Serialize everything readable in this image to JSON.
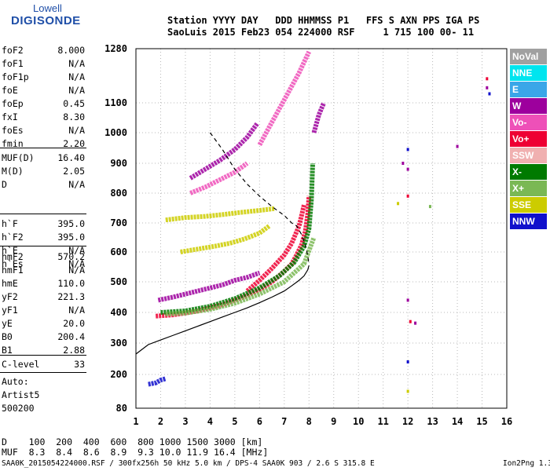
{
  "logo": {
    "line1": "Lowell",
    "line2": "DIGISONDE"
  },
  "header": {
    "line1": "Station YYYY DAY   DDD HHMMSS P1   FFS S AXN PPS IGA PS",
    "line2": "SaoLuis 2015 Feb23 054 224000 RSF     1 715 100 00- 11"
  },
  "params_a": [
    {
      "k": "foF2",
      "v": "8.000"
    },
    {
      "k": "foF1",
      "v": "N/A"
    },
    {
      "k": "foF1p",
      "v": "N/A"
    },
    {
      "k": "foE",
      "v": "N/A"
    },
    {
      "k": "foEp",
      "v": "0.45"
    },
    {
      "k": "fxI",
      "v": "8.30"
    },
    {
      "k": "foEs",
      "v": "N/A"
    },
    {
      "k": "fmin",
      "v": "2.20"
    }
  ],
  "params_b": [
    {
      "k": "MUF(D)",
      "v": "16.40"
    },
    {
      "k": "M(D)",
      "v": "2.05"
    },
    {
      "k": "D",
      "v": "N/A"
    }
  ],
  "params_c": [
    {
      "k": "h`F",
      "v": "395.0"
    },
    {
      "k": "h`F2",
      "v": "395.0"
    },
    {
      "k": "h`E",
      "v": "N/A"
    },
    {
      "k": "h`Es",
      "v": "N/A"
    }
  ],
  "params_d": [
    {
      "k": "hmF2",
      "v": "570.2"
    },
    {
      "k": "hmF1",
      "v": "N/A"
    },
    {
      "k": "hmE",
      "v": "110.0"
    },
    {
      "k": "yF2",
      "v": "221.3"
    },
    {
      "k": "yF1",
      "v": "N/A"
    },
    {
      "k": "yE",
      "v": "20.0"
    },
    {
      "k": "B0",
      "v": "200.4"
    },
    {
      "k": "B1",
      "v": "2.88"
    }
  ],
  "params_e": [
    {
      "k": "C-level",
      "v": "33"
    }
  ],
  "auto": {
    "line1": "Auto:",
    "line2": "Artist5",
    "line3": "500200"
  },
  "legend": [
    {
      "label": "NoVal",
      "color": "#a0a0a0"
    },
    {
      "label": "NNE",
      "color": "#00e5ef"
    },
    {
      "label": "E",
      "color": "#3aa6e8"
    },
    {
      "label": "W",
      "color": "#9d009d"
    },
    {
      "label": "Vo-",
      "color": "#ee50b8"
    },
    {
      "label": "Vo+",
      "color": "#ee0033"
    },
    {
      "label": "SSW",
      "color": "#f0b0b0"
    },
    {
      "label": "X-",
      "color": "#007a00"
    },
    {
      "label": "X+",
      "color": "#7ab854"
    },
    {
      "label": "SSE",
      "color": "#cccc00"
    },
    {
      "label": "NNW",
      "color": "#1010cc"
    }
  ],
  "bottom": {
    "line1": "D    100  200  400  600  800 1000 1500 3000 [km]",
    "line2": "MUF  8.3  8.4  8.6  8.9  9.3 10.0 11.9 16.4 [MHz]"
  },
  "footer": {
    "left": "SAA0K_2015054224000.RSF / 300fx256h 50 kHz 5.0 km / DPS-4 SAA0K 903 / 2.6 S 315.8 E",
    "right": "Ion2Png 1.3.17"
  },
  "chart_data": {
    "type": "scatter",
    "xlim": [
      1,
      16
    ],
    "ylim": [
      80,
      1280
    ],
    "xticks": [
      1,
      2,
      3,
      4,
      5,
      6,
      7,
      8,
      9,
      10,
      11,
      12,
      13,
      14,
      15,
      16
    ],
    "yticks": [
      80,
      200,
      300,
      400,
      500,
      600,
      700,
      800,
      900,
      1000,
      1100,
      1280
    ],
    "grid": true,
    "profile": {
      "color": "#000000",
      "x": [
        1.0,
        1.5,
        2.0,
        2.5,
        3.0,
        3.5,
        4.0,
        4.5,
        5.0,
        5.5,
        6.0,
        6.5,
        7.0,
        7.3,
        7.6,
        7.8,
        7.95,
        8.0
      ],
      "y": [
        265,
        295,
        310,
        325,
        340,
        355,
        370,
        385,
        400,
        415,
        432,
        450,
        470,
        487,
        505,
        520,
        540,
        555
      ]
    },
    "dashed_profile": {
      "color": "#000000",
      "x": [
        4.0,
        4.5,
        5.0,
        5.5,
        6.0,
        6.5,
        7.0,
        7.3,
        7.5,
        7.7,
        7.9,
        8.0
      ],
      "y": [
        1000,
        945,
        880,
        830,
        790,
        755,
        725,
        700,
        690,
        660,
        610,
        560
      ]
    },
    "traces": [
      {
        "name": "Vo+",
        "color": "#ee0033",
        "x": [
          1.8,
          2.5,
          3.0,
          3.5,
          4.0,
          4.5,
          5.0,
          5.5,
          6.0,
          6.5,
          7.0,
          7.3,
          7.5,
          7.7,
          7.85,
          7.95,
          8.0
        ],
        "y": [
          388,
          392,
          398,
          405,
          415,
          425,
          440,
          455,
          475,
          500,
          535,
          560,
          590,
          625,
          670,
          730,
          790
        ]
      },
      {
        "name": "Vo+",
        "color": "#ee0033",
        "x": [
          5.5,
          6.0,
          6.5,
          7.0,
          7.3,
          7.6,
          7.8
        ],
        "y": [
          470,
          505,
          545,
          590,
          630,
          690,
          760
        ]
      },
      {
        "name": "X-",
        "color": "#007a00",
        "x": [
          2.0,
          3.0,
          4.0,
          5.0,
          6.0,
          6.8,
          7.4,
          7.8,
          8.0,
          8.1,
          8.15
        ],
        "y": [
          400,
          405,
          420,
          445,
          480,
          520,
          565,
          620,
          680,
          780,
          900
        ]
      },
      {
        "name": "X+",
        "color": "#7ab854",
        "x": [
          2.2,
          3.0,
          4.0,
          5.0,
          6.0,
          7.0,
          7.8,
          8.2
        ],
        "y": [
          395,
          398,
          410,
          430,
          460,
          500,
          560,
          650
        ]
      },
      {
        "name": "W",
        "color": "#9d009d",
        "x": [
          1.9,
          2.5,
          3.0,
          3.5,
          4.0,
          4.5,
          5.0,
          5.5,
          6.0
        ],
        "y": [
          440,
          450,
          460,
          470,
          480,
          490,
          505,
          515,
          530
        ]
      },
      {
        "name": "W",
        "color": "#9d009d",
        "x": [
          3.2,
          3.8,
          4.4,
          5.0,
          5.5,
          5.9
        ],
        "y": [
          850,
          880,
          910,
          945,
          985,
          1030
        ]
      },
      {
        "name": "Vo-",
        "color": "#ee50b8",
        "x": [
          3.2,
          3.8,
          4.4,
          5.0,
          5.5
        ],
        "y": [
          800,
          820,
          845,
          870,
          900
        ]
      },
      {
        "name": "Vo-",
        "color": "#ee50b8",
        "x": [
          6.0,
          6.4,
          6.8,
          7.2,
          7.6,
          8.0
        ],
        "y": [
          960,
          1020,
          1080,
          1140,
          1200,
          1270
        ]
      },
      {
        "name": "SSE",
        "color": "#cccc00",
        "x": [
          2.2,
          3.0,
          3.8,
          4.5,
          5.2,
          6.0,
          6.6
        ],
        "y": [
          710,
          718,
          722,
          728,
          735,
          742,
          748
        ]
      },
      {
        "name": "SSE",
        "color": "#cccc00",
        "x": [
          2.8,
          3.5,
          4.2,
          4.8,
          5.4,
          6.0,
          6.4
        ],
        "y": [
          600,
          610,
          620,
          630,
          645,
          665,
          690
        ]
      },
      {
        "name": "W",
        "color": "#9d009d",
        "x": [
          8.2,
          8.4,
          8.6
        ],
        "y": [
          1000,
          1060,
          1100
        ]
      },
      {
        "name": "NNW",
        "color": "#1010cc",
        "x": [
          1.5,
          1.8,
          2.0,
          2.2
        ],
        "y": [
          165,
          170,
          180,
          185
        ]
      }
    ],
    "scatter_points": [
      {
        "name": "NNW",
        "color": "#1010cc",
        "x": [
          12.0,
          15.3
        ],
        "y": [
          945,
          1130
        ]
      },
      {
        "name": "W",
        "color": "#9d009d",
        "x": [
          12.0,
          12.3,
          14.0,
          15.2,
          11.8,
          12.0
        ],
        "y": [
          880,
          365,
          955,
          1150,
          900,
          440
        ]
      },
      {
        "name": "Vo+",
        "color": "#ee0033",
        "x": [
          12.0,
          12.1,
          15.2
        ],
        "y": [
          790,
          370,
          1180
        ]
      },
      {
        "name": "SSE",
        "color": "#cccc00",
        "x": [
          11.6,
          12.0
        ],
        "y": [
          765,
          140
        ]
      },
      {
        "name": "X+",
        "color": "#7ab854",
        "x": [
          12.9
        ],
        "y": [
          755
        ]
      },
      {
        "name": "NNW",
        "color": "#1010cc",
        "x": [
          12.0
        ],
        "y": [
          240
        ]
      }
    ]
  }
}
